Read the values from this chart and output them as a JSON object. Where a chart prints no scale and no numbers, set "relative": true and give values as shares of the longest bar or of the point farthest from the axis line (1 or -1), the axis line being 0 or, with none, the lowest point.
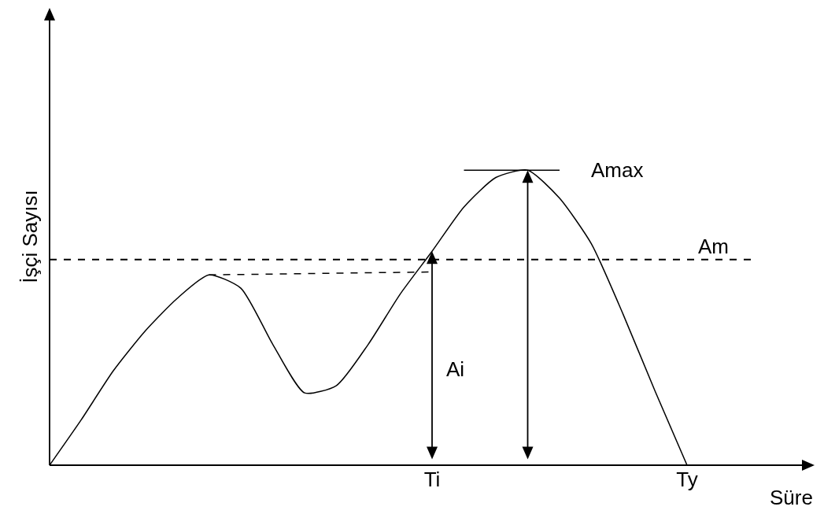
{
  "chart_data": {
    "type": "line",
    "relative": true,
    "ylabel": "İşçi Sayısı",
    "xlabel": "Süre",
    "categories": [
      null,
      null,
      null,
      null,
      null,
      null,
      null,
      null,
      null,
      null,
      null,
      null,
      "Ti",
      null,
      null,
      null,
      null,
      null,
      null,
      null,
      "Ty",
      null,
      null,
      null,
      null
    ],
    "tick_labels": "x",
    "marker": "none",
    "series": [
      {
        "color": "#000000",
        "values": [
          0,
          0.155,
          0.32,
          0.455,
          0.565,
          0.645,
          0.6,
          0.41,
          0.245,
          0.27,
          0.41,
          0.58,
          0.725,
          0.875,
          0.975,
          1,
          0.905,
          0.75,
          0.51,
          0.25,
          0,
          null,
          null,
          null,
          null
        ]
      },
      {
        "color": "#000000",
        "line_style": "dashed",
        "values": [
          null,
          null,
          null,
          null,
          null,
          0.645,
          null,
          null,
          null,
          null,
          null,
          null,
          0.655,
          null,
          null,
          null,
          null,
          null,
          null,
          null,
          null,
          null,
          null,
          null,
          null
        ]
      },
      {
        "color": "#000000",
        "values": [
          null,
          null,
          null,
          null,
          null,
          null,
          null,
          null,
          null,
          null,
          null,
          null,
          null,
          1,
          null,
          null,
          1,
          null,
          null,
          null,
          null,
          null,
          null,
          null,
          null
        ]
      }
    ],
    "ref_lines": [
      {
        "axis": "y",
        "value": 0.697,
        "label": "Am",
        "color": "#000000",
        "line_style": "dashed"
      }
    ],
    "annotations": [
      "Ai",
      "Amax"
    ]
  }
}
